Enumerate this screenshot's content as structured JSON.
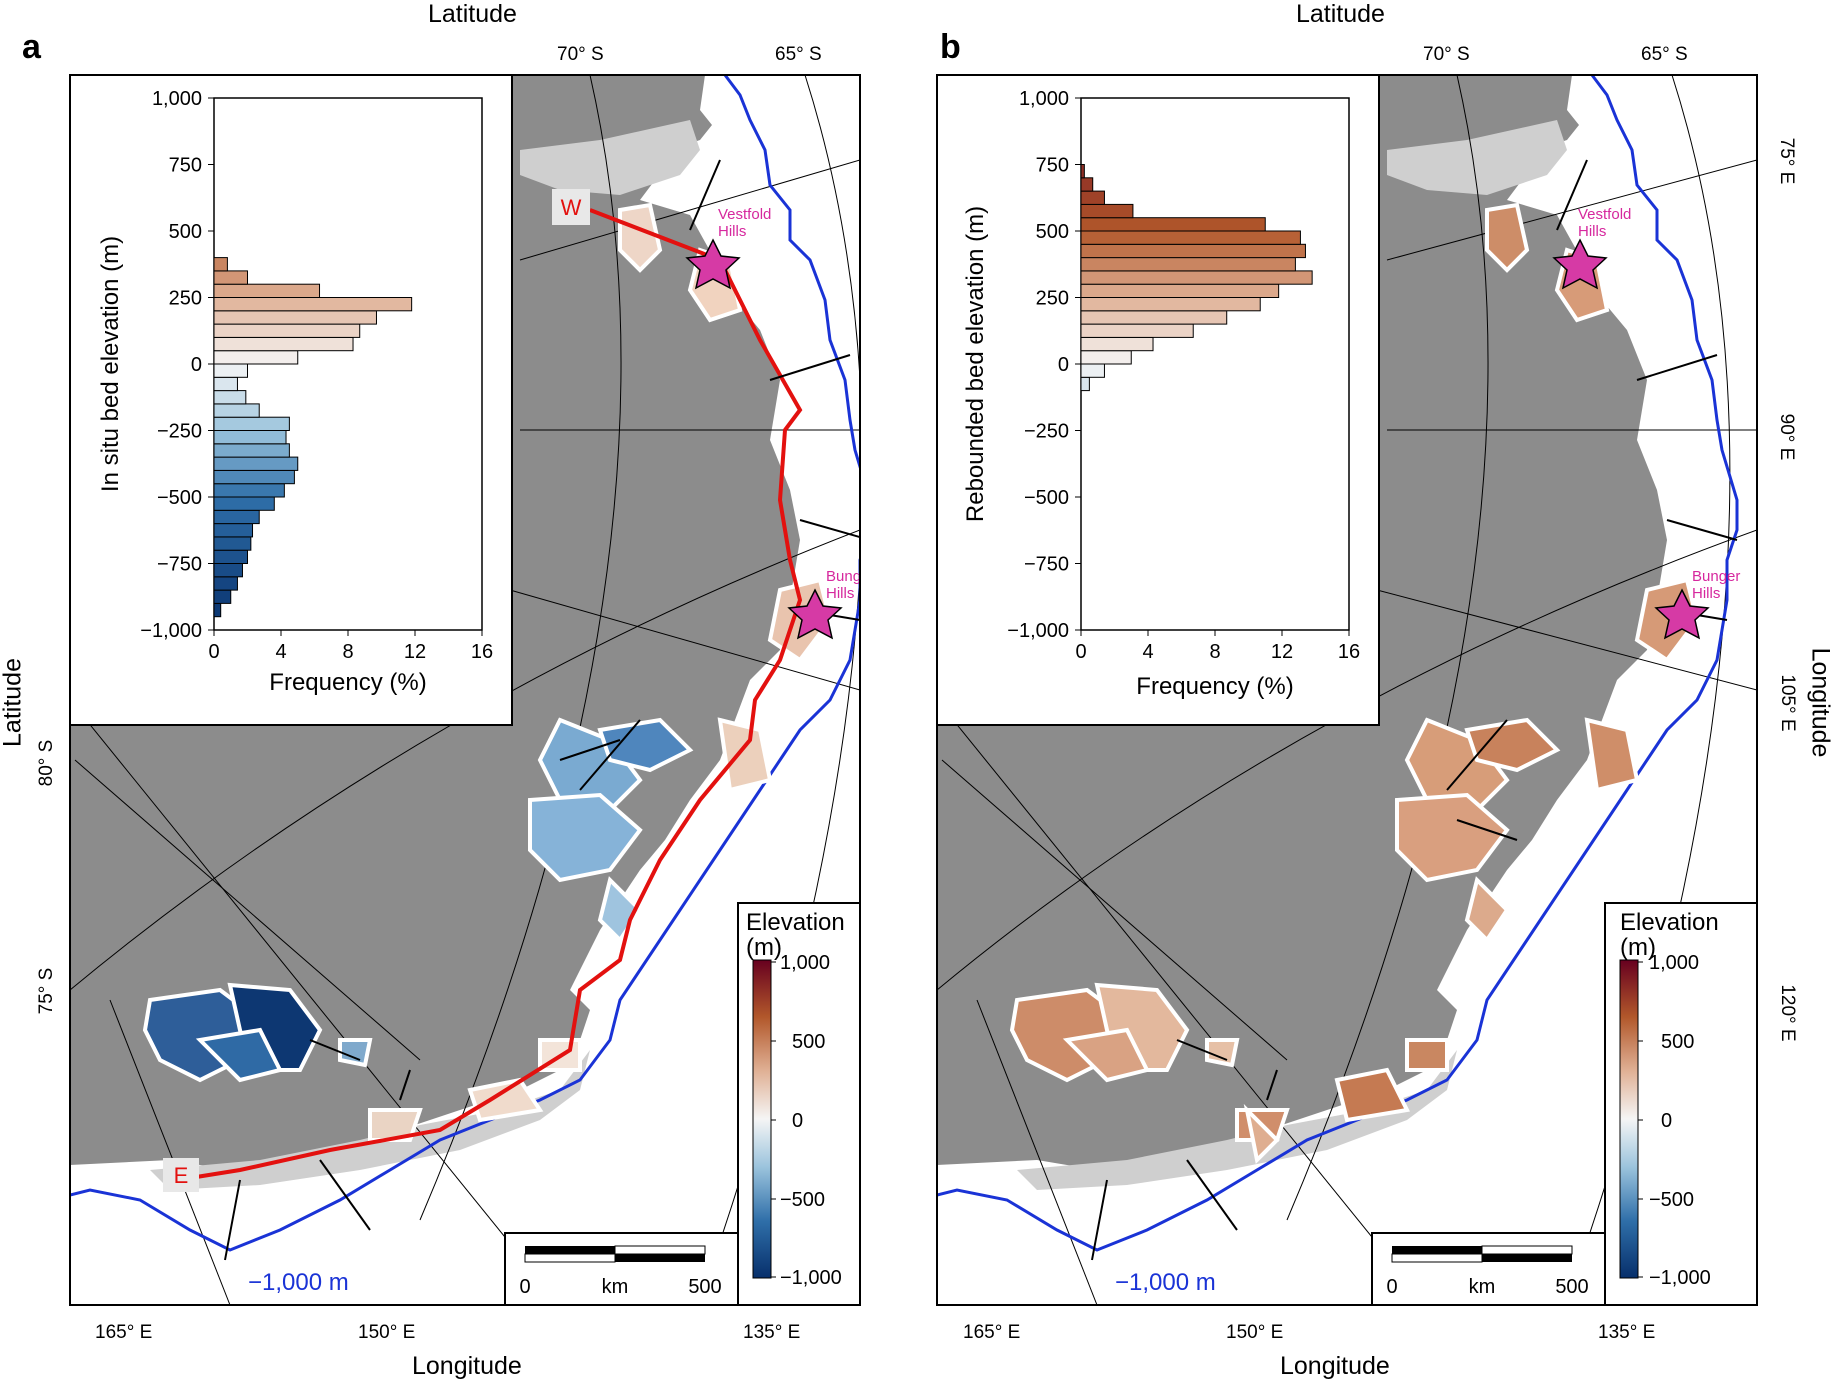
{
  "figure": {
    "panels": [
      {
        "letter": "a",
        "top_title": "Latitude",
        "left_title": "Latitude",
        "bottom_title": "Longitude",
        "lat_ticks_top": [
          "70° S",
          "65° S"
        ],
        "lat_ticks_left": [
          "80° S",
          "75° S"
        ],
        "lon_ticks_bottom": [
          "165° E",
          "150° E",
          "135° E"
        ],
        "ice_edge_label": "−1,000 m",
        "transect_labels": [
          "W",
          "E"
        ],
        "sites": [
          "Vestfold Hills",
          "Bunger Hills"
        ],
        "colorbar": {
          "title_line1": "Elevation",
          "title_line2": "(m)",
          "ticks": [
            "1,000",
            "500",
            "0",
            "−500",
            "−1,000"
          ]
        },
        "scalebar": {
          "left": "0",
          "unit": "km",
          "right": "500"
        }
      },
      {
        "letter": "b",
        "top_title": "Latitude",
        "right_title": "Longitude",
        "bottom_title": "Longitude",
        "lat_ticks_top": [
          "70° S",
          "65° S"
        ],
        "lon_ticks_right": [
          "75° E",
          "90° E",
          "105° E",
          "120° E"
        ],
        "lon_ticks_bottom": [
          "165° E",
          "150° E",
          "135° E"
        ],
        "ice_edge_label": "−1,000 m",
        "sites": [
          "Vestfold Hills",
          "Bunger Hills"
        ],
        "colorbar": {
          "title_line1": "Elevation",
          "title_line2": "(m)",
          "ticks": [
            "1,000",
            "500",
            "0",
            "−500",
            "−1,000"
          ]
        },
        "scalebar": {
          "left": "0",
          "unit": "km",
          "right": "500"
        }
      }
    ]
  },
  "chart_data": [
    {
      "type": "bar",
      "orientation": "horizontal",
      "title": "",
      "ylabel": "In situ bed elevation (m)",
      "xlabel": "Frequency (%)",
      "xlim": [
        0,
        16
      ],
      "ylim": [
        -1000,
        1000
      ],
      "xticks": [
        "0",
        "4",
        "8",
        "12",
        "16"
      ],
      "yticks": [
        "1,000",
        "750",
        "500",
        "250",
        "0",
        "−250",
        "−500",
        "−750",
        "−1,000"
      ],
      "bin_width": 50,
      "bin_centers": [
        -925,
        -875,
        -825,
        -775,
        -725,
        -675,
        -625,
        -575,
        -525,
        -475,
        -425,
        -375,
        -325,
        -275,
        -225,
        -175,
        -125,
        -75,
        -25,
        25,
        75,
        125,
        175,
        225,
        275,
        325,
        375
      ],
      "values": [
        0.4,
        1.0,
        1.4,
        1.7,
        2.0,
        2.2,
        2.3,
        2.7,
        3.6,
        4.2,
        4.8,
        5.0,
        4.5,
        4.3,
        4.5,
        2.7,
        1.9,
        1.4,
        2.0,
        5.0,
        8.3,
        8.7,
        9.7,
        11.8,
        6.3,
        2.0,
        0.8
      ]
    },
    {
      "type": "bar",
      "orientation": "horizontal",
      "title": "",
      "ylabel": "Rebounded bed elevation (m)",
      "xlabel": "Frequency (%)",
      "xlim": [
        0,
        16
      ],
      "ylim": [
        -1000,
        1000
      ],
      "xticks": [
        "0",
        "4",
        "8",
        "12",
        "16"
      ],
      "yticks": [
        "1,000",
        "750",
        "500",
        "250",
        "0",
        "−250",
        "−500",
        "−750",
        "−1,000"
      ],
      "bin_width": 50,
      "bin_centers": [
        -75,
        -25,
        25,
        75,
        125,
        175,
        225,
        275,
        325,
        375,
        425,
        475,
        525,
        575,
        625,
        675,
        725
      ],
      "values": [
        0.5,
        1.4,
        3.0,
        4.3,
        6.7,
        8.7,
        10.7,
        11.8,
        13.8,
        12.8,
        13.4,
        13.1,
        11.0,
        3.1,
        1.4,
        0.7,
        0.2
      ]
    }
  ]
}
